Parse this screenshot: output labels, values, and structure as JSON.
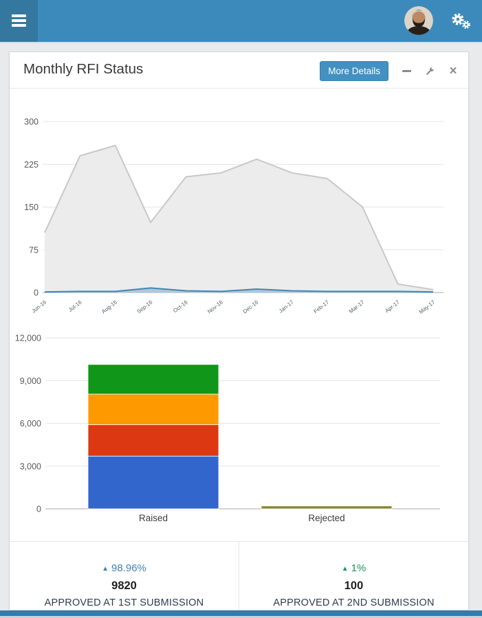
{
  "header": {
    "menu_icon": "hamburger-icon",
    "avatar_icon": "user-avatar-photo",
    "settings_icon": "cogs-icon",
    "bg_color": "#3c8abc",
    "menu_bg_color": "#35789f"
  },
  "card": {
    "title": "Monthly RFI Status",
    "more_details_label": "More Details",
    "minimize_icon": "minus-icon",
    "tools_icon": "wrench-icon",
    "close_icon": "close-icon",
    "close_glyph": "×"
  },
  "chart_data": [
    {
      "type": "area",
      "x": [
        "Jun-16",
        "Jul-16",
        "Aug-16",
        "Sep-16",
        "Oct-16",
        "Nov-16",
        "Dec-16",
        "Jan-17",
        "Feb-17",
        "Mar-17",
        "Apr-17",
        "May-17"
      ],
      "ylim": [
        0,
        300
      ],
      "yticks": [
        0,
        75,
        150,
        225,
        300
      ],
      "grid": true,
      "legend_position": "none",
      "series": [
        {
          "name": "gray-area",
          "fill": "#ececec",
          "stroke": "#c8c8c8",
          "values": [
            105,
            240,
            258,
            123,
            203,
            210,
            234,
            210,
            200,
            150,
            15,
            5
          ]
        },
        {
          "name": "blue-area",
          "fill": "rgba(62,134,184,0.35)",
          "stroke": "#3e86b8",
          "values": [
            1,
            2,
            2,
            8,
            3,
            2,
            6,
            3,
            2,
            2,
            2,
            1
          ]
        }
      ]
    },
    {
      "type": "bar",
      "stacked": true,
      "categories": [
        "Raised",
        "Rejected"
      ],
      "ylim": [
        0,
        12000
      ],
      "ytick_values": [
        0,
        3000,
        6000,
        9000,
        12000
      ],
      "ytick_labels": [
        "0",
        "3,000",
        "6,000",
        "9,000",
        "12,000"
      ],
      "grid": true,
      "legend_position": "none",
      "series": [
        {
          "name": "blue-segment",
          "color": "#3366cc",
          "values": [
            3700,
            0
          ]
        },
        {
          "name": "red-segment",
          "color": "#dc3912",
          "values": [
            2200,
            0
          ]
        },
        {
          "name": "orange-segment",
          "color": "#ff9900",
          "values": [
            2150,
            0
          ]
        },
        {
          "name": "green-segment",
          "color": "#109618",
          "values": [
            2080,
            0
          ]
        },
        {
          "name": "olive-segment",
          "color": "#85852f",
          "values": [
            0,
            200
          ]
        }
      ]
    }
  ],
  "stats": [
    {
      "arrow": "▲",
      "delta": "98.96%",
      "value": "9820",
      "label": "APPROVED AT 1ST SUBMISSION",
      "color": "#4181ba"
    },
    {
      "arrow": "▲",
      "delta": "1%",
      "value": "100",
      "label": "APPROVED AT 2ND SUBMISSION",
      "color": "#1a9850"
    }
  ],
  "colors": {
    "page_bg": "#e9eaec",
    "card_bg": "#ffffff",
    "header_bg": "#3c8abc",
    "button_bg": "#4291c2",
    "footer_bar": "#2f7cad",
    "gridline": "#e4e4e4",
    "axis_line": "#a9a9a9",
    "tick_text": "#5a5a5a"
  }
}
